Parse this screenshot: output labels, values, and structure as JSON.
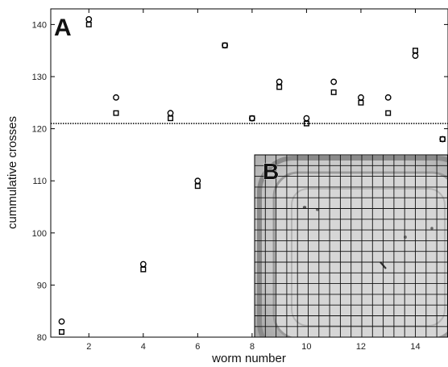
{
  "chart_data": {
    "type": "scatter",
    "panel_label": "A",
    "inset_label": "B",
    "xlabel": "worm number",
    "ylabel": "cummulative crosses",
    "xlim": [
      0.6,
      15.2
    ],
    "ylim": [
      80,
      143
    ],
    "xticks": [
      2,
      4,
      6,
      8,
      10,
      12,
      14
    ],
    "yticks": [
      80,
      90,
      100,
      110,
      120,
      130,
      140
    ],
    "grid": false,
    "reference_line": {
      "y": 121,
      "style": "dotted"
    },
    "series": [
      {
        "marker": "circle",
        "x": [
          1,
          2,
          3,
          4,
          5,
          6,
          7,
          8,
          9,
          10,
          11,
          12,
          13,
          14,
          15
        ],
        "y": [
          83,
          141,
          126,
          94,
          123,
          110,
          136,
          122,
          129,
          122,
          129,
          126,
          126,
          134,
          118
        ]
      },
      {
        "marker": "square",
        "x": [
          1,
          2,
          3,
          4,
          5,
          6,
          7,
          8,
          9,
          10,
          11,
          12,
          13,
          14,
          15
        ],
        "y": [
          81,
          140,
          123,
          93,
          122,
          109,
          136,
          122,
          128,
          121,
          127,
          125,
          123,
          135,
          118
        ]
      }
    ],
    "inset": {
      "description_icon": "arena-grid-photo"
    }
  }
}
